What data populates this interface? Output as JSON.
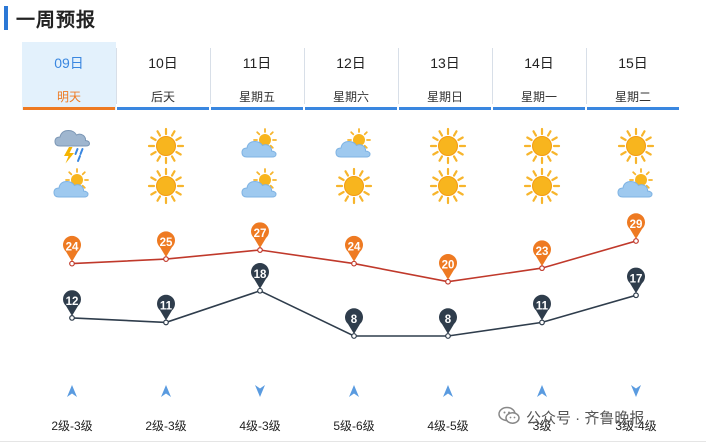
{
  "header": {
    "title": "一周预报"
  },
  "days": [
    {
      "date": "09日",
      "name": "明天",
      "active": true,
      "icon_day": "thunder-rain-icon",
      "icon_night": "partly-cloudy-icon",
      "high": "24",
      "low": "12",
      "wind_dir": "up",
      "wind": "2级-3级"
    },
    {
      "date": "10日",
      "name": "后天",
      "active": false,
      "icon_day": "sunny-icon",
      "icon_night": "sunny-icon",
      "high": "25",
      "low": "11",
      "wind_dir": "up",
      "wind": "2级-3级"
    },
    {
      "date": "11日",
      "name": "星期五",
      "active": false,
      "icon_day": "partly-cloudy-icon",
      "icon_night": "partly-cloudy-icon",
      "high": "27",
      "low": "18",
      "wind_dir": "down",
      "wind": "4级-3级"
    },
    {
      "date": "12日",
      "name": "星期六",
      "active": false,
      "icon_day": "partly-cloudy-icon",
      "icon_night": "sunny-icon",
      "high": "24",
      "low": "8",
      "wind_dir": "up",
      "wind": "5级-6级"
    },
    {
      "date": "13日",
      "name": "星期日",
      "active": false,
      "icon_day": "sunny-icon",
      "icon_night": "sunny-icon",
      "high": "20",
      "low": "8",
      "wind_dir": "up",
      "wind": "4级-5级"
    },
    {
      "date": "14日",
      "name": "星期一",
      "active": false,
      "icon_day": "sunny-icon",
      "icon_night": "sunny-icon",
      "high": "23",
      "low": "11",
      "wind_dir": "up",
      "wind": "3级"
    },
    {
      "date": "15日",
      "name": "星期二",
      "active": false,
      "icon_day": "sunny-icon",
      "icon_night": "partly-cloudy-icon",
      "high": "29",
      "low": "17",
      "wind_dir": "down",
      "wind": "3级-4级"
    }
  ],
  "colors": {
    "high_line": "#c0392b",
    "high_marker": "#ee7a22",
    "low_line": "#2f3d4c",
    "low_marker": "#2f3d4c",
    "accent": "#3a87e0",
    "active_label": "#ee7a22"
  },
  "watermark": {
    "text": "公众号 · 齐鲁晚报",
    "icon": "wechat-icon"
  }
}
